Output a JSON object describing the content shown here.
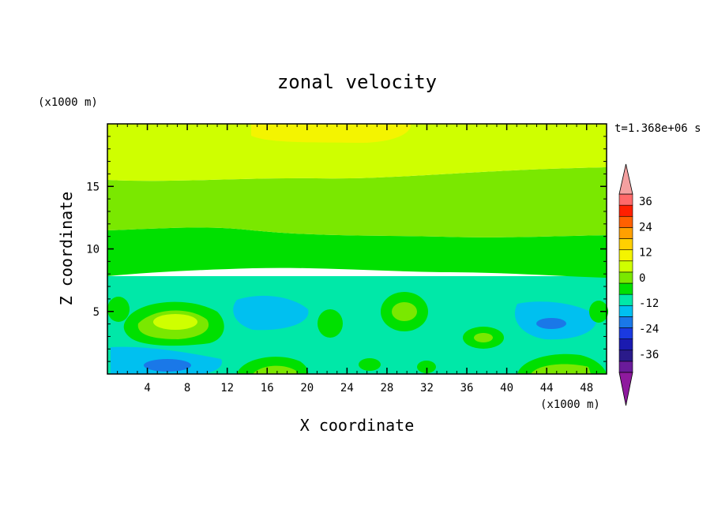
{
  "chart_data": {
    "type": "heatmap",
    "title": "zonal velocity",
    "xlabel": "X coordinate",
    "ylabel": "Z coordinate",
    "x_unit_label": "(x1000 m)",
    "z_unit_label": "(x1000 m)",
    "time_label": "t=1.368e+06 s",
    "xlim": [
      0,
      50
    ],
    "ylim": [
      0,
      20
    ],
    "x_ticks": [
      "4",
      "8",
      "12",
      "16",
      "20",
      "24",
      "28",
      "32",
      "36",
      "40",
      "44",
      "48"
    ],
    "y_ticks": [
      "5",
      "10",
      "15"
    ],
    "colorbar": {
      "levels": [
        -42,
        -36,
        -30,
        -24,
        -18,
        -12,
        -6,
        0,
        6,
        12,
        18,
        24,
        30,
        36,
        42
      ],
      "tick_labels": [
        "36",
        "24",
        "12",
        "0",
        "-12",
        "-24",
        "-36"
      ],
      "colors": [
        "#6a1b9a",
        "#2a1a8a",
        "#1a1ab0",
        "#1a3ae0",
        "#1a78e8",
        "#00c0f0",
        "#00e8a8",
        "#00e000",
        "#7ae800",
        "#cfff00",
        "#f4f400",
        "#ffd000",
        "#ffa000",
        "#ff6000",
        "#ff2000",
        "#ff6a6a"
      ],
      "extend_low_color": "#8e1a9e",
      "extend_high_color": "#f4a0a0"
    },
    "features": [
      {
        "x": 18,
        "z": 19.3,
        "value": 14
      },
      {
        "x": 11,
        "z": 17.5,
        "value": 8
      },
      {
        "x": 25,
        "z": 15.8,
        "value": 5
      },
      {
        "x": 25,
        "z": 11,
        "value": 1
      },
      {
        "x": 25,
        "z": 6.5,
        "value": -4
      },
      {
        "x": 7,
        "z": 3.5,
        "value": 11
      },
      {
        "x": 6,
        "z": 0.6,
        "value": -18
      },
      {
        "x": 30,
        "z": 4.5,
        "value": 7
      },
      {
        "x": 22,
        "z": 4,
        "value": 3
      },
      {
        "x": 44.5,
        "z": 3.8,
        "value": -16
      },
      {
        "x": 38,
        "z": 2.5,
        "value": 6
      },
      {
        "x": 45,
        "z": 0.8,
        "value": 9
      },
      {
        "x": 18,
        "z": 1.5,
        "value": 6
      },
      {
        "x": 15,
        "z": 4.5,
        "value": -8
      }
    ]
  }
}
